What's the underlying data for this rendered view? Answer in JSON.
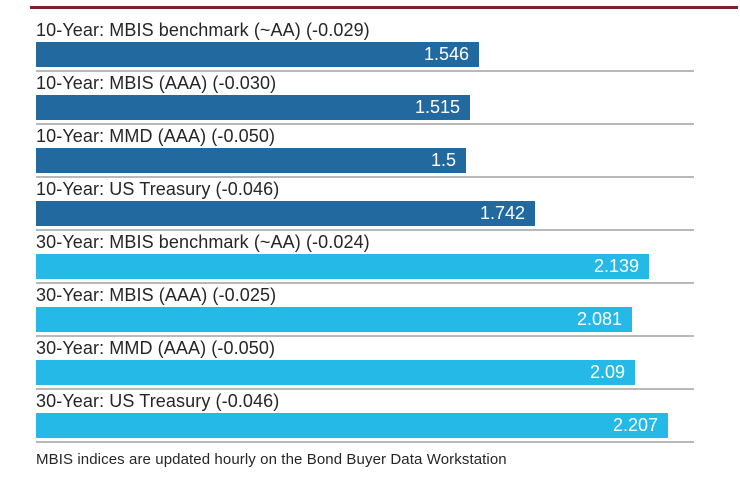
{
  "page": {
    "background": "#ffffff",
    "accent_line_color": "#7d2027"
  },
  "chart_data": {
    "type": "bar",
    "orientation": "horizontal",
    "title": "",
    "xlim": [
      0,
      2.296
    ],
    "grid": false,
    "legend": false,
    "bar_colors": {
      "ten_year": "#21699f",
      "thirty_year": "#24b9e7"
    },
    "divider_color": "#b9b9b9",
    "rows": [
      {
        "label": "10-Year: MBIS benchmark (~AA) (-0.029)",
        "value": 1.546,
        "display": "1.546",
        "group": "ten_year"
      },
      {
        "label": "10-Year: MBIS (AAA) (-0.030)",
        "value": 1.515,
        "display": "1.515",
        "group": "ten_year"
      },
      {
        "label": "10-Year: MMD (AAA) (-0.050)",
        "value": 1.5,
        "display": "1.5",
        "group": "ten_year"
      },
      {
        "label": "10-Year: US Treasury (-0.046)",
        "value": 1.742,
        "display": "1.742",
        "group": "ten_year"
      },
      {
        "label": "30-Year: MBIS benchmark (~AA) (-0.024)",
        "value": 2.139,
        "display": "2.139",
        "group": "thirty_year"
      },
      {
        "label": "30-Year: MBIS (AAA) (-0.025)",
        "value": 2.081,
        "display": "2.081",
        "group": "thirty_year"
      },
      {
        "label": "30-Year: MMD (AAA) (-0.050)",
        "value": 2.09,
        "display": "2.09",
        "group": "thirty_year"
      },
      {
        "label": "30-Year: US Treasury (-0.046)",
        "value": 2.207,
        "display": "2.207",
        "group": "thirty_year"
      }
    ],
    "footnote": "MBIS indices are updated hourly on the Bond Buyer Data Workstation"
  }
}
